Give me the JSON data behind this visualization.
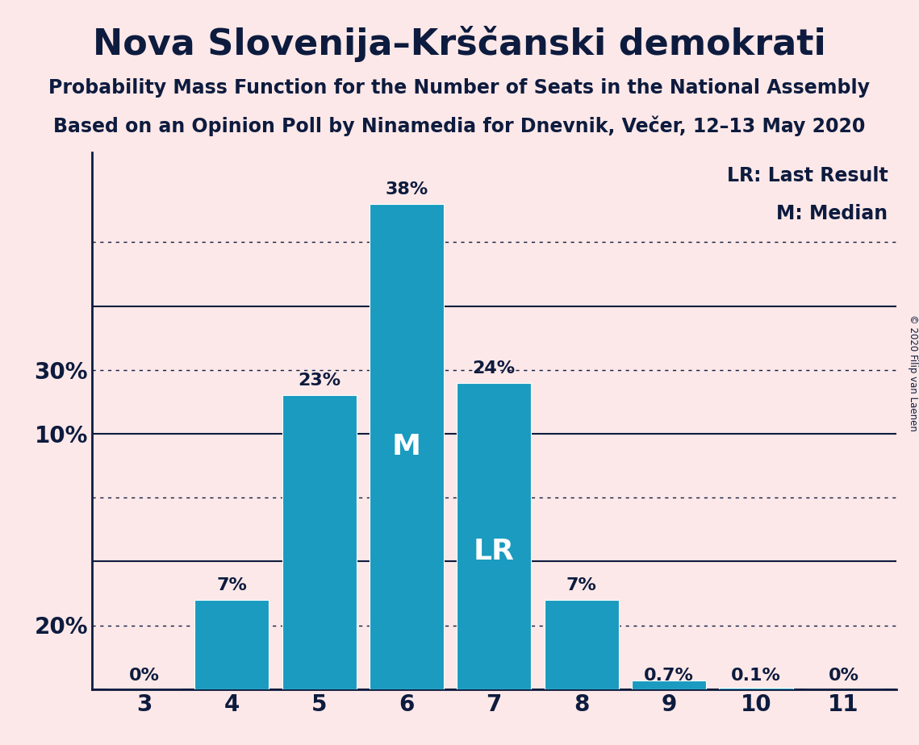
{
  "title": "Nova Slovenija–Krščanski demokrati",
  "subtitle1": "Probability Mass Function for the Number of Seats in the National Assembly",
  "subtitle2": "Based on an Opinion Poll by Ninamedia for Dnevnik, Večer, 12–13 May 2020",
  "copyright": "© 2020 Filip van Laenen",
  "categories": [
    3,
    4,
    5,
    6,
    7,
    8,
    9,
    10,
    11
  ],
  "values": [
    0.0,
    7.0,
    23.0,
    38.0,
    24.0,
    7.0,
    0.7,
    0.1,
    0.0
  ],
  "labels": [
    "0%",
    "7%",
    "23%",
    "38%",
    "24%",
    "7%",
    "0.7%",
    "0.1%",
    "0%"
  ],
  "bar_color": "#1a9bbf",
  "background_color": "#fce8e8",
  "text_color": "#0d1b3e",
  "median_bar": 6,
  "lr_bar": 7,
  "legend_lr": "LR: Last Result",
  "legend_m": "M: Median",
  "solid_yticks": [
    0,
    10,
    20,
    30
  ],
  "dotted_yticks": [
    5,
    15,
    25,
    35
  ],
  "labeled_yticks": [
    10,
    20,
    30
  ],
  "ylim_max": 42
}
